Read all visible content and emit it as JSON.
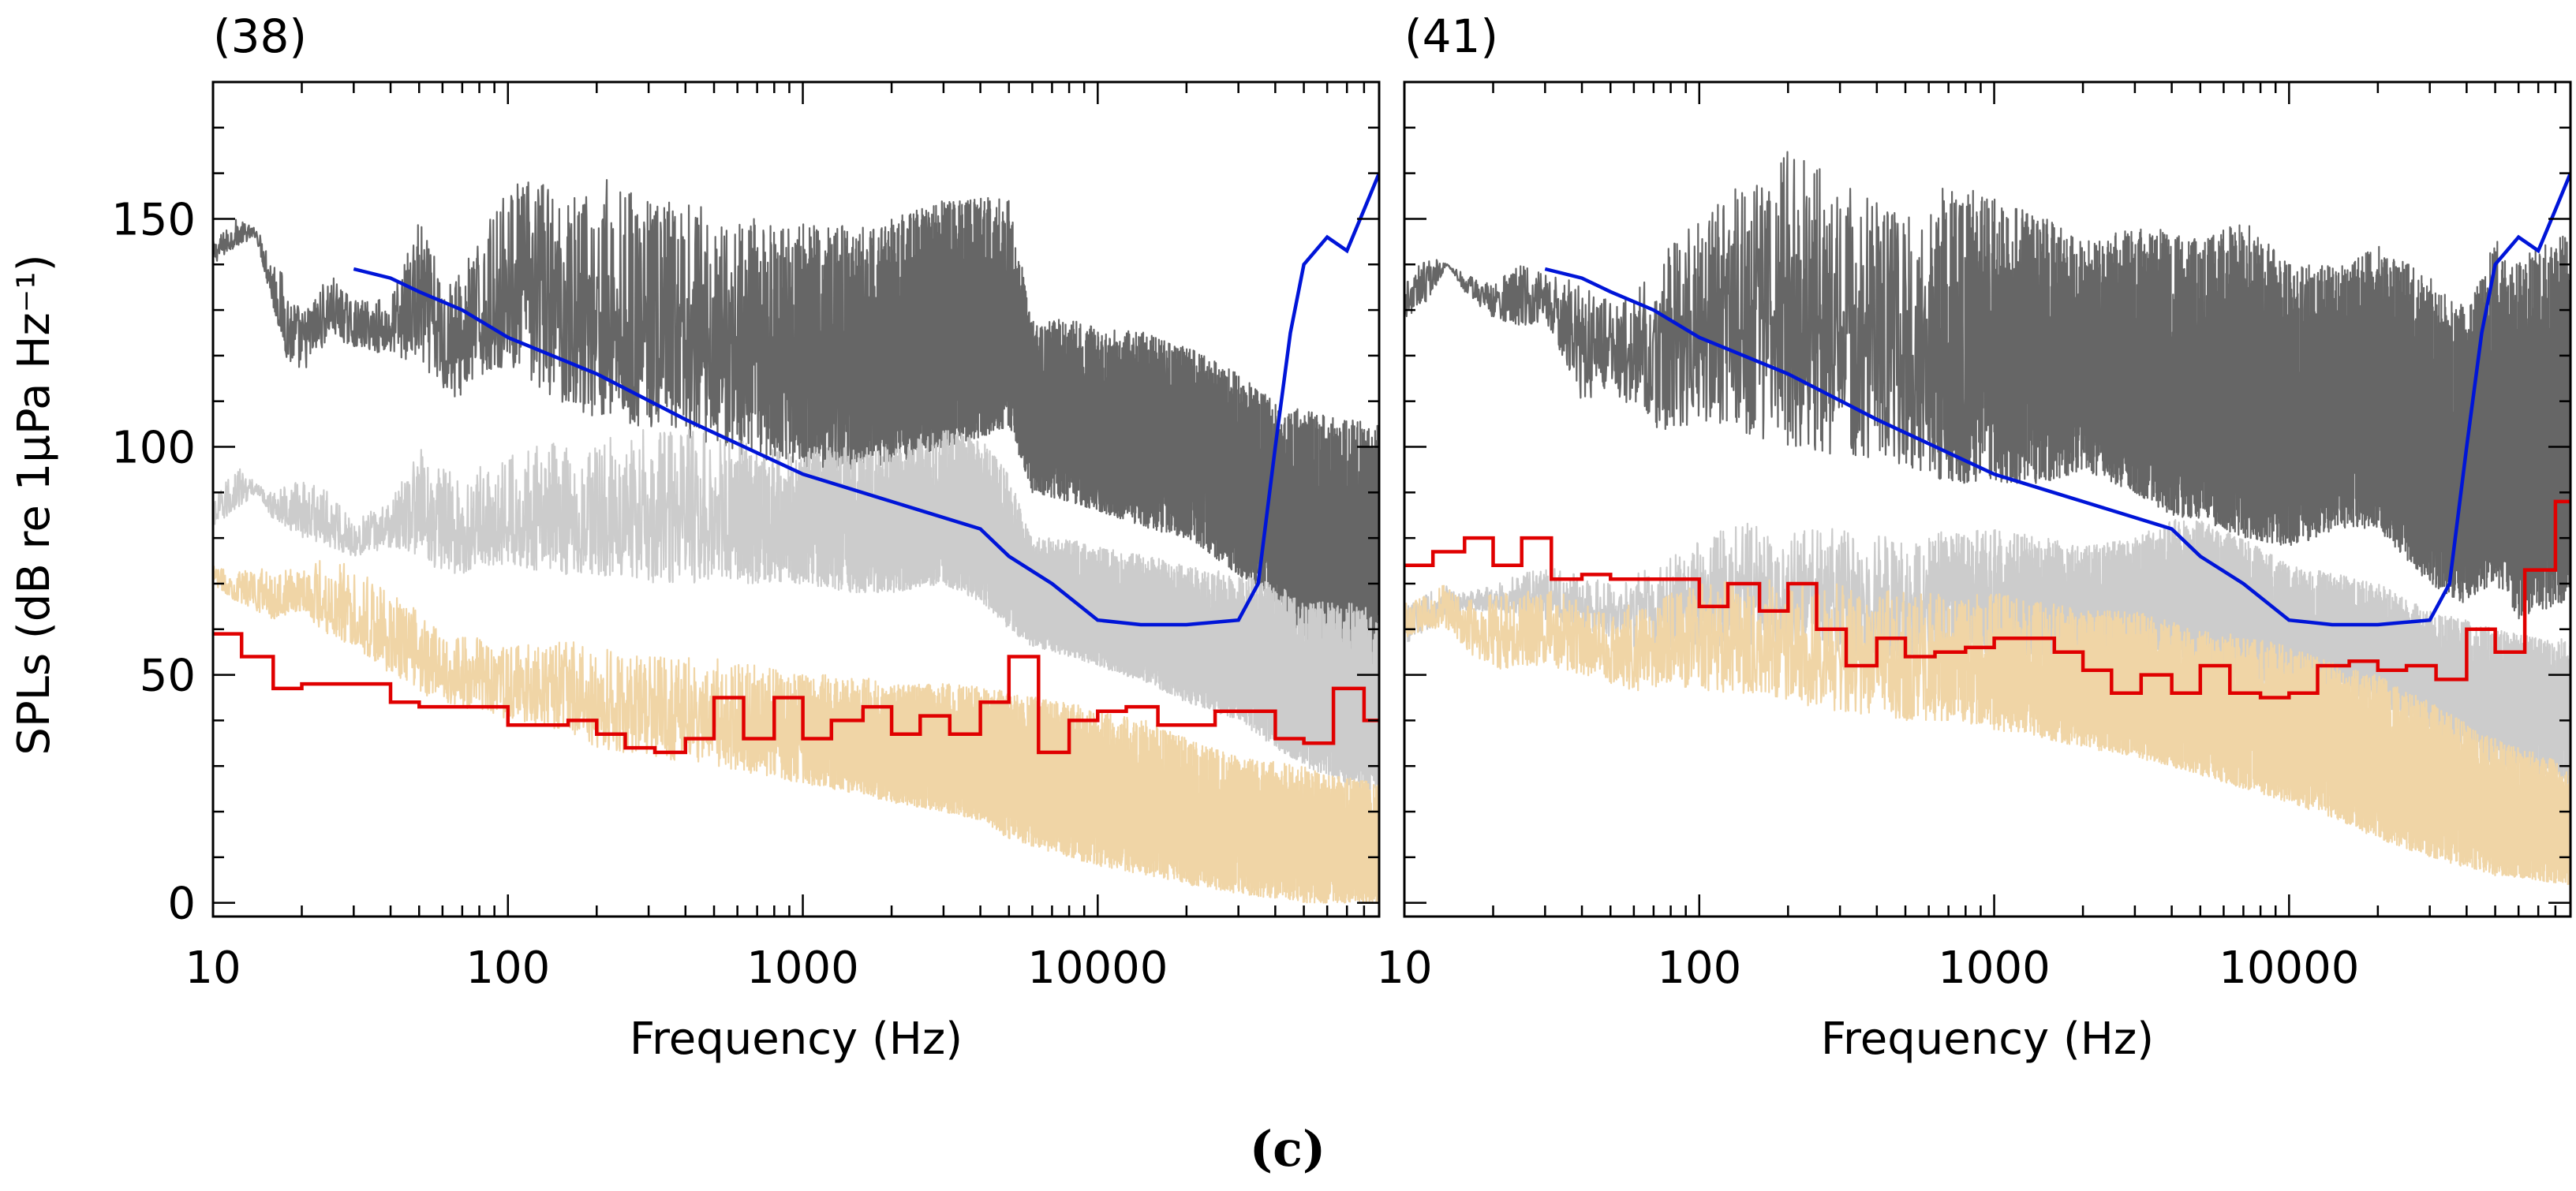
{
  "figure": {
    "caption": "(c)",
    "ylabel": "SPLs (dB re 1μPa Hz⁻¹)",
    "colors": {
      "dark_noise": "#666666",
      "light_noise": "#cccccc",
      "tan_noise": "#f0d5a6",
      "hearing_threshold": "#0015d8",
      "band_level": "#e00000",
      "axis": "#000000"
    }
  },
  "chart_data": [
    {
      "type": "line",
      "title": "(38)",
      "xlabel": "Frequency (Hz)",
      "ylabel": "SPLs (dB re 1μPa Hz⁻¹)",
      "xscale": "log",
      "xlim": [
        10,
        90000
      ],
      "ylim": [
        -3,
        180
      ],
      "xticks": [
        10,
        100,
        1000,
        10000
      ],
      "xtick_labels": [
        "10",
        "100",
        "1000",
        "10000"
      ],
      "yticks": [
        0,
        50,
        100,
        150
      ],
      "ytick_labels": [
        "0",
        "50",
        "100",
        "150"
      ],
      "series": [
        {
          "name": "dark-noise-spectrum",
          "style": "noise-band",
          "color": "#666666",
          "x": [
            10,
            12,
            14,
            16,
            18,
            20,
            25,
            30,
            40,
            50,
            60,
            70,
            80,
            100,
            130,
            150,
            200,
            300,
            500,
            700,
            1000,
            1500,
            2000,
            3000,
            4000,
            5000,
            6000,
            8000,
            10000,
            15000,
            20000,
            30000,
            40000,
            50000,
            70000,
            90000
          ],
          "low": [
            140,
            144,
            146,
            130,
            118,
            116,
            124,
            122,
            120,
            118,
            112,
            110,
            115,
            118,
            112,
            110,
            106,
            103,
            100,
            97,
            95,
            95,
            96,
            100,
            102,
            104,
            90,
            88,
            86,
            82,
            80,
            72,
            65,
            58,
            50,
            52
          ],
          "high": [
            145,
            150,
            148,
            142,
            136,
            130,
            138,
            132,
            133,
            150,
            138,
            140,
            145,
            158,
            160,
            155,
            160,
            155,
            152,
            150,
            150,
            148,
            150,
            154,
            155,
            154,
            128,
            128,
            126,
            125,
            122,
            116,
            110,
            108,
            106,
            105
          ]
        },
        {
          "name": "light-noise-spectrum",
          "style": "noise-band",
          "color": "#cccccc",
          "x": [
            10,
            12,
            14,
            16,
            20,
            25,
            30,
            40,
            50,
            60,
            70,
            80,
            100,
            150,
            200,
            300,
            500,
            700,
            1000,
            1500,
            2000,
            3000,
            4000,
            5000,
            6000,
            8000,
            10000,
            15000,
            20000,
            30000,
            40000,
            50000,
            70000,
            90000
          ],
          "low": [
            82,
            86,
            90,
            84,
            80,
            78,
            76,
            78,
            76,
            72,
            72,
            74,
            74,
            72,
            72,
            70,
            70,
            70,
            70,
            68,
            68,
            70,
            66,
            60,
            56,
            54,
            52,
            48,
            44,
            40,
            34,
            30,
            26,
            24
          ],
          "high": [
            88,
            96,
            92,
            90,
            94,
            90,
            84,
            88,
            100,
            96,
            92,
            96,
            98,
            102,
            102,
            104,
            104,
            100,
            100,
            100,
            100,
            104,
            102,
            94,
            80,
            80,
            78,
            76,
            74,
            72,
            70,
            66,
            66,
            64
          ]
        },
        {
          "name": "tan-noise-spectrum",
          "style": "noise-band",
          "color": "#f0d5a6",
          "x": [
            10,
            12,
            14,
            16,
            20,
            25,
            30,
            40,
            50,
            60,
            80,
            100,
            150,
            200,
            300,
            500,
            700,
            1000,
            1500,
            2000,
            3000,
            4000,
            5000,
            8000,
            10000,
            15000,
            20000,
            30000,
            50000,
            90000
          ],
          "low": [
            70,
            66,
            64,
            62,
            64,
            58,
            56,
            50,
            46,
            44,
            42,
            40,
            38,
            34,
            32,
            30,
            28,
            26,
            24,
            22,
            20,
            18,
            14,
            10,
            8,
            6,
            4,
            2,
            0,
            0
          ],
          "high": [
            74,
            72,
            76,
            72,
            74,
            76,
            74,
            68,
            64,
            60,
            58,
            56,
            58,
            56,
            54,
            54,
            52,
            50,
            50,
            48,
            48,
            48,
            46,
            44,
            42,
            40,
            36,
            32,
            30,
            26
          ]
        },
        {
          "name": "hearing-threshold",
          "style": "line",
          "color": "#0015d8",
          "x": [
            30,
            40,
            50,
            70,
            100,
            200,
            400,
            1000,
            2000,
            4000,
            5000,
            7000,
            10000,
            14000,
            20000,
            30000,
            35000,
            40000,
            45000,
            50000,
            60000,
            70000,
            80000,
            90000
          ],
          "y": [
            139,
            137,
            134,
            130,
            124,
            116,
            106,
            94,
            88,
            82,
            76,
            70,
            62,
            61,
            61,
            62,
            70,
            100,
            125,
            140,
            146,
            143,
            152,
            160
          ]
        },
        {
          "name": "band-level",
          "style": "step",
          "color": "#e00000",
          "x": [
            10,
            12.5,
            16,
            20,
            25,
            31.5,
            40,
            50,
            63,
            80,
            100,
            125,
            160,
            200,
            250,
            315,
            400,
            500,
            630,
            800,
            1000,
            1250,
            1600,
            2000,
            2500,
            3150,
            4000,
            5000,
            6300,
            8000,
            10000,
            12500,
            16000,
            20000,
            25000,
            31500,
            40000,
            50000,
            63000,
            80000
          ],
          "y": [
            59,
            54,
            47,
            48,
            48,
            48,
            44,
            43,
            43,
            43,
            39,
            39,
            40,
            37,
            34,
            33,
            36,
            45,
            36,
            45,
            36,
            40,
            43,
            37,
            41,
            37,
            44,
            54,
            33,
            40,
            42,
            43,
            39,
            39,
            42,
            42,
            36,
            35,
            47,
            40
          ]
        }
      ]
    },
    {
      "type": "line",
      "title": "(41)",
      "xlabel": "Frequency (Hz)",
      "ylabel": "",
      "xscale": "log",
      "xlim": [
        10,
        90000
      ],
      "ylim": [
        -3,
        180
      ],
      "xticks": [
        10,
        100,
        1000,
        10000
      ],
      "xtick_labels": [
        "10",
        "100",
        "1000",
        "10000"
      ],
      "yticks": [
        0,
        50,
        100,
        150
      ],
      "ytick_labels": [],
      "series": [
        {
          "name": "dark-noise-spectrum",
          "style": "noise-band",
          "color": "#666666",
          "x": [
            10,
            12,
            14,
            16,
            20,
            25,
            30,
            40,
            50,
            60,
            70,
            80,
            100,
            150,
            200,
            300,
            500,
            700,
            1000,
            1500,
            2000,
            3000,
            4000,
            5000,
            7000,
            10000,
            15000,
            20000,
            30000,
            40000,
            50000,
            60000,
            70000,
            90000
          ],
          "low": [
            128,
            132,
            140,
            134,
            128,
            126,
            128,
            110,
            112,
            108,
            104,
            100,
            106,
            102,
            100,
            98,
            96,
            92,
            92,
            92,
            95,
            90,
            85,
            84,
            80,
            78,
            82,
            82,
            70,
            65,
            70,
            62,
            64,
            66
          ],
          "high": [
            136,
            142,
            140,
            138,
            136,
            140,
            138,
            136,
            132,
            134,
            138,
            145,
            150,
            160,
            165,
            160,
            150,
            158,
            155,
            150,
            145,
            148,
            148,
            145,
            150,
            140,
            140,
            144,
            138,
            130,
            146,
            140,
            145,
            148
          ]
        },
        {
          "name": "light-noise-spectrum",
          "style": "noise-band",
          "color": "#cccccc",
          "x": [
            10,
            12,
            14,
            16,
            20,
            25,
            30,
            40,
            50,
            60,
            80,
            100,
            150,
            200,
            300,
            500,
            700,
            1000,
            1500,
            2000,
            3000,
            4000,
            5000,
            7000,
            10000,
            15000,
            20000,
            30000,
            40000,
            50000,
            70000,
            90000
          ],
          "low": [
            56,
            60,
            62,
            64,
            64,
            62,
            62,
            60,
            58,
            56,
            56,
            56,
            56,
            56,
            54,
            54,
            54,
            54,
            54,
            52,
            54,
            54,
            52,
            48,
            46,
            46,
            44,
            38,
            34,
            30,
            28,
            26
          ],
          "high": [
            66,
            68,
            70,
            68,
            70,
            72,
            74,
            72,
            70,
            72,
            76,
            80,
            84,
            82,
            82,
            80,
            82,
            82,
            80,
            78,
            80,
            84,
            84,
            80,
            74,
            72,
            70,
            64,
            62,
            60,
            58,
            58
          ]
        },
        {
          "name": "tan-noise-spectrum",
          "style": "noise-band",
          "color": "#f0d5a6",
          "x": [
            10,
            12,
            14,
            16,
            20,
            25,
            30,
            40,
            50,
            60,
            80,
            100,
            150,
            200,
            300,
            500,
            700,
            1000,
            1500,
            2000,
            3000,
            5000,
            8000,
            10000,
            15000,
            20000,
            30000,
            50000,
            90000
          ],
          "low": [
            58,
            60,
            60,
            56,
            50,
            52,
            52,
            50,
            48,
            46,
            48,
            46,
            46,
            44,
            42,
            40,
            40,
            38,
            36,
            34,
            32,
            28,
            24,
            22,
            18,
            14,
            10,
            6,
            4
          ],
          "high": [
            66,
            68,
            70,
            66,
            68,
            68,
            70,
            66,
            64,
            66,
            68,
            70,
            72,
            70,
            70,
            68,
            68,
            68,
            66,
            64,
            64,
            60,
            58,
            56,
            52,
            50,
            44,
            36,
            30
          ]
        },
        {
          "name": "hearing-threshold",
          "style": "line",
          "color": "#0015d8",
          "x": [
            30,
            40,
            50,
            70,
            100,
            200,
            400,
            1000,
            2000,
            4000,
            5000,
            7000,
            10000,
            14000,
            20000,
            30000,
            35000,
            40000,
            45000,
            50000,
            60000,
            70000,
            80000,
            90000
          ],
          "y": [
            139,
            137,
            134,
            130,
            124,
            116,
            106,
            94,
            88,
            82,
            76,
            70,
            62,
            61,
            61,
            62,
            70,
            100,
            125,
            140,
            146,
            143,
            152,
            160
          ]
        },
        {
          "name": "band-level",
          "style": "step",
          "color": "#e00000",
          "x": [
            10,
            12.5,
            16,
            20,
            25,
            31.5,
            40,
            50,
            63,
            80,
            100,
            125,
            160,
            200,
            250,
            315,
            400,
            500,
            630,
            800,
            1000,
            1250,
            1600,
            2000,
            2500,
            3150,
            4000,
            5000,
            6300,
            8000,
            10000,
            12500,
            16000,
            20000,
            25000,
            31500,
            40000,
            50000,
            63000,
            80000
          ],
          "y": [
            74,
            77,
            80,
            74,
            80,
            71,
            72,
            71,
            71,
            71,
            65,
            70,
            64,
            70,
            60,
            52,
            58,
            54,
            55,
            56,
            58,
            58,
            55,
            51,
            46,
            50,
            46,
            52,
            46,
            45,
            46,
            52,
            53,
            51,
            52,
            49,
            60,
            55,
            73,
            88
          ]
        }
      ]
    }
  ]
}
